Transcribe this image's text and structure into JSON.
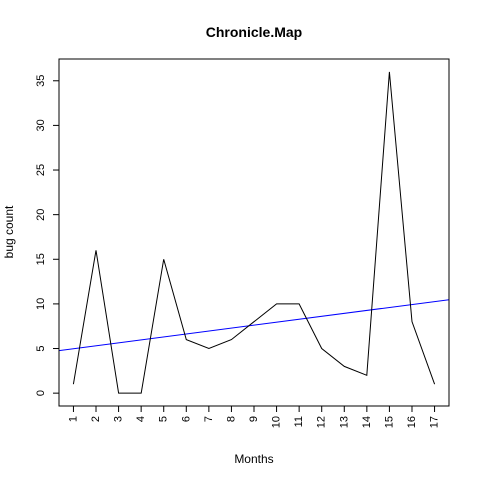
{
  "chart_data": {
    "type": "line",
    "title": "Chronicle.Map",
    "xlabel": "Months",
    "ylabel": "bug count",
    "x": [
      1,
      2,
      3,
      4,
      5,
      6,
      7,
      8,
      9,
      10,
      11,
      12,
      13,
      14,
      15,
      16,
      17
    ],
    "x_tick_labels": [
      "1",
      "2",
      "3",
      "4",
      "5",
      "6",
      "7",
      "8",
      "9",
      "10",
      "11",
      "12",
      "13",
      "14",
      "15",
      "16",
      "17"
    ],
    "y_ticks": [
      0,
      5,
      10,
      15,
      20,
      25,
      30,
      35
    ],
    "y_tick_labels": [
      "0",
      "5",
      "10",
      "15",
      "20",
      "25",
      "30",
      "35"
    ],
    "xlim": [
      0.36,
      17.64
    ],
    "ylim": [
      -1.44,
      37.44
    ],
    "series": [
      {
        "values": [
          1,
          16,
          0,
          0,
          15,
          6,
          5,
          6,
          8,
          10,
          10,
          5,
          3,
          2,
          36,
          8,
          1
        ],
        "color": "#000000"
      }
    ],
    "trend_line": {
      "intercept": 4.65,
      "slope": 0.33,
      "color": "#0000ff"
    },
    "grid": false,
    "legend": "none"
  }
}
